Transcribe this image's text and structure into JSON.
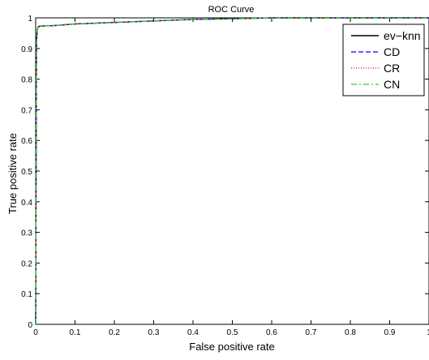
{
  "chart_data": {
    "type": "line",
    "title": "ROC Curve",
    "xlabel": "False positive rate",
    "ylabel": "True positive rate",
    "xlim": [
      0,
      1
    ],
    "ylim": [
      0,
      1
    ],
    "x_ticks": [
      "0",
      "0.1",
      "0.2",
      "0.3",
      "0.4",
      "0.5",
      "0.6",
      "0.7",
      "0.8",
      "0.9",
      "1"
    ],
    "y_ticks": [
      "0",
      "0.1",
      "0.2",
      "0.3",
      "0.4",
      "0.5",
      "0.6",
      "0.7",
      "0.8",
      "0.9",
      "1"
    ],
    "grid": false,
    "legend_position": "top-right",
    "series": [
      {
        "name": "ev−knn",
        "color": "#000000",
        "style": "solid",
        "x": [
          0,
          0.002,
          0.004,
          0.006,
          0.01,
          0.05,
          0.1,
          0.2,
          0.3,
          0.4,
          0.5,
          0.6,
          1
        ],
        "y": [
          0,
          0.92,
          0.96,
          0.97,
          0.973,
          0.975,
          0.98,
          0.985,
          0.99,
          0.995,
          0.997,
          1,
          1
        ]
      },
      {
        "name": "CD",
        "color": "#0000ff",
        "style": "dashed",
        "x": [
          0,
          0.002,
          0.004,
          0.006,
          0.01,
          0.05,
          0.1,
          0.2,
          0.3,
          0.4,
          0.5,
          0.6,
          1
        ],
        "y": [
          0,
          0.92,
          0.96,
          0.97,
          0.973,
          0.975,
          0.98,
          0.985,
          0.99,
          0.995,
          0.997,
          1,
          1
        ]
      },
      {
        "name": "CR",
        "color": "#ff0000",
        "style": "dotted",
        "x": [
          0,
          0.002,
          0.004,
          0.006,
          0.01,
          0.05,
          0.1,
          0.2,
          0.3,
          0.4,
          0.5,
          0.6,
          1
        ],
        "y": [
          0,
          0.92,
          0.96,
          0.97,
          0.973,
          0.975,
          0.98,
          0.985,
          0.99,
          0.995,
          0.997,
          1,
          1
        ]
      },
      {
        "name": "CN",
        "color": "#33cc33",
        "style": "dashdot",
        "x": [
          0,
          0.002,
          0.004,
          0.006,
          0.01,
          0.05,
          0.1,
          0.2,
          0.3,
          0.4,
          0.5,
          0.6,
          1
        ],
        "y": [
          0,
          0.92,
          0.96,
          0.97,
          0.973,
          0.975,
          0.98,
          0.985,
          0.99,
          0.995,
          0.997,
          1,
          1
        ]
      }
    ]
  }
}
